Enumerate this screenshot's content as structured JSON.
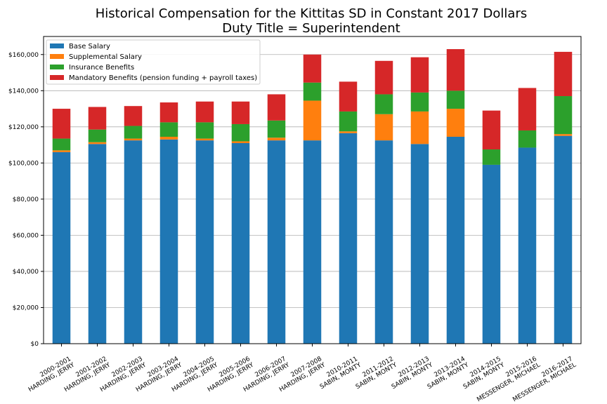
{
  "chart_data": {
    "type": "bar",
    "stacked": true,
    "title": "Historical Compensation for the Kittitas SD in Constant 2017 Dollars",
    "subtitle": "Duty Title = Superintendent",
    "xlabel": "",
    "ylabel": "",
    "ylim": [
      0,
      170000
    ],
    "grid": "horizontal",
    "legend_position": "top-left",
    "y_ticks": [
      "$0",
      "$20,000",
      "$40,000",
      "$60,000",
      "$80,000",
      "$100,000",
      "$120,000",
      "$140,000",
      "$160,000"
    ],
    "y_tick_values": [
      0,
      20000,
      40000,
      60000,
      80000,
      100000,
      120000,
      140000,
      160000
    ],
    "categories": [
      [
        "2000-2001",
        "HARDING, JERRY"
      ],
      [
        "2001-2002",
        "HARDING, JERRY"
      ],
      [
        "2002-2003",
        "HARDING, JERRY"
      ],
      [
        "2003-2004",
        "HARDING, JERRY"
      ],
      [
        "2004-2005",
        "HARDING, JERRY"
      ],
      [
        "2005-2006",
        "HARDING, JERRY"
      ],
      [
        "2006-2007",
        "HARDING, JERRY"
      ],
      [
        "2007-2008",
        "HARDING, JERRY"
      ],
      [
        "2010-2011",
        "SABIN, MONTY"
      ],
      [
        "2011-2012",
        "SABIN, MONTY"
      ],
      [
        "2012-2013",
        "SABIN, MONTY"
      ],
      [
        "2013-2014",
        "SABIN, MONTY"
      ],
      [
        "2014-2015",
        "SABIN, MONTY"
      ],
      [
        "2015-2016",
        "MESSENGER, MICHAEL"
      ],
      [
        "2016-2017",
        "MESSENGER, MICHAEL"
      ]
    ],
    "series": [
      {
        "name": "Base Salary",
        "color": "#1f77b4",
        "values": [
          106000,
          110500,
          112500,
          113000,
          112500,
          111000,
          112500,
          112500,
          116500,
          112500,
          110500,
          114500,
          99000,
          108500,
          115000
        ]
      },
      {
        "name": "Supplemental Salary",
        "color": "#ff7f0e",
        "values": [
          1000,
          1000,
          1000,
          1500,
          1000,
          1000,
          1500,
          22000,
          1000,
          14500,
          18000,
          15500,
          0,
          0,
          1000
        ]
      },
      {
        "name": "Insurance Benefits",
        "color": "#2ca02c",
        "values": [
          6500,
          7000,
          7000,
          8000,
          9000,
          9500,
          9500,
          10000,
          11000,
          11000,
          10500,
          10000,
          8500,
          9500,
          21000
        ]
      },
      {
        "name": "Mandatory Benefits (pension funding + payroll taxes)",
        "color": "#d62728",
        "values": [
          16500,
          12500,
          11000,
          11000,
          11500,
          12500,
          14500,
          15500,
          16500,
          18500,
          19500,
          23000,
          21500,
          23500,
          24500
        ]
      }
    ]
  }
}
